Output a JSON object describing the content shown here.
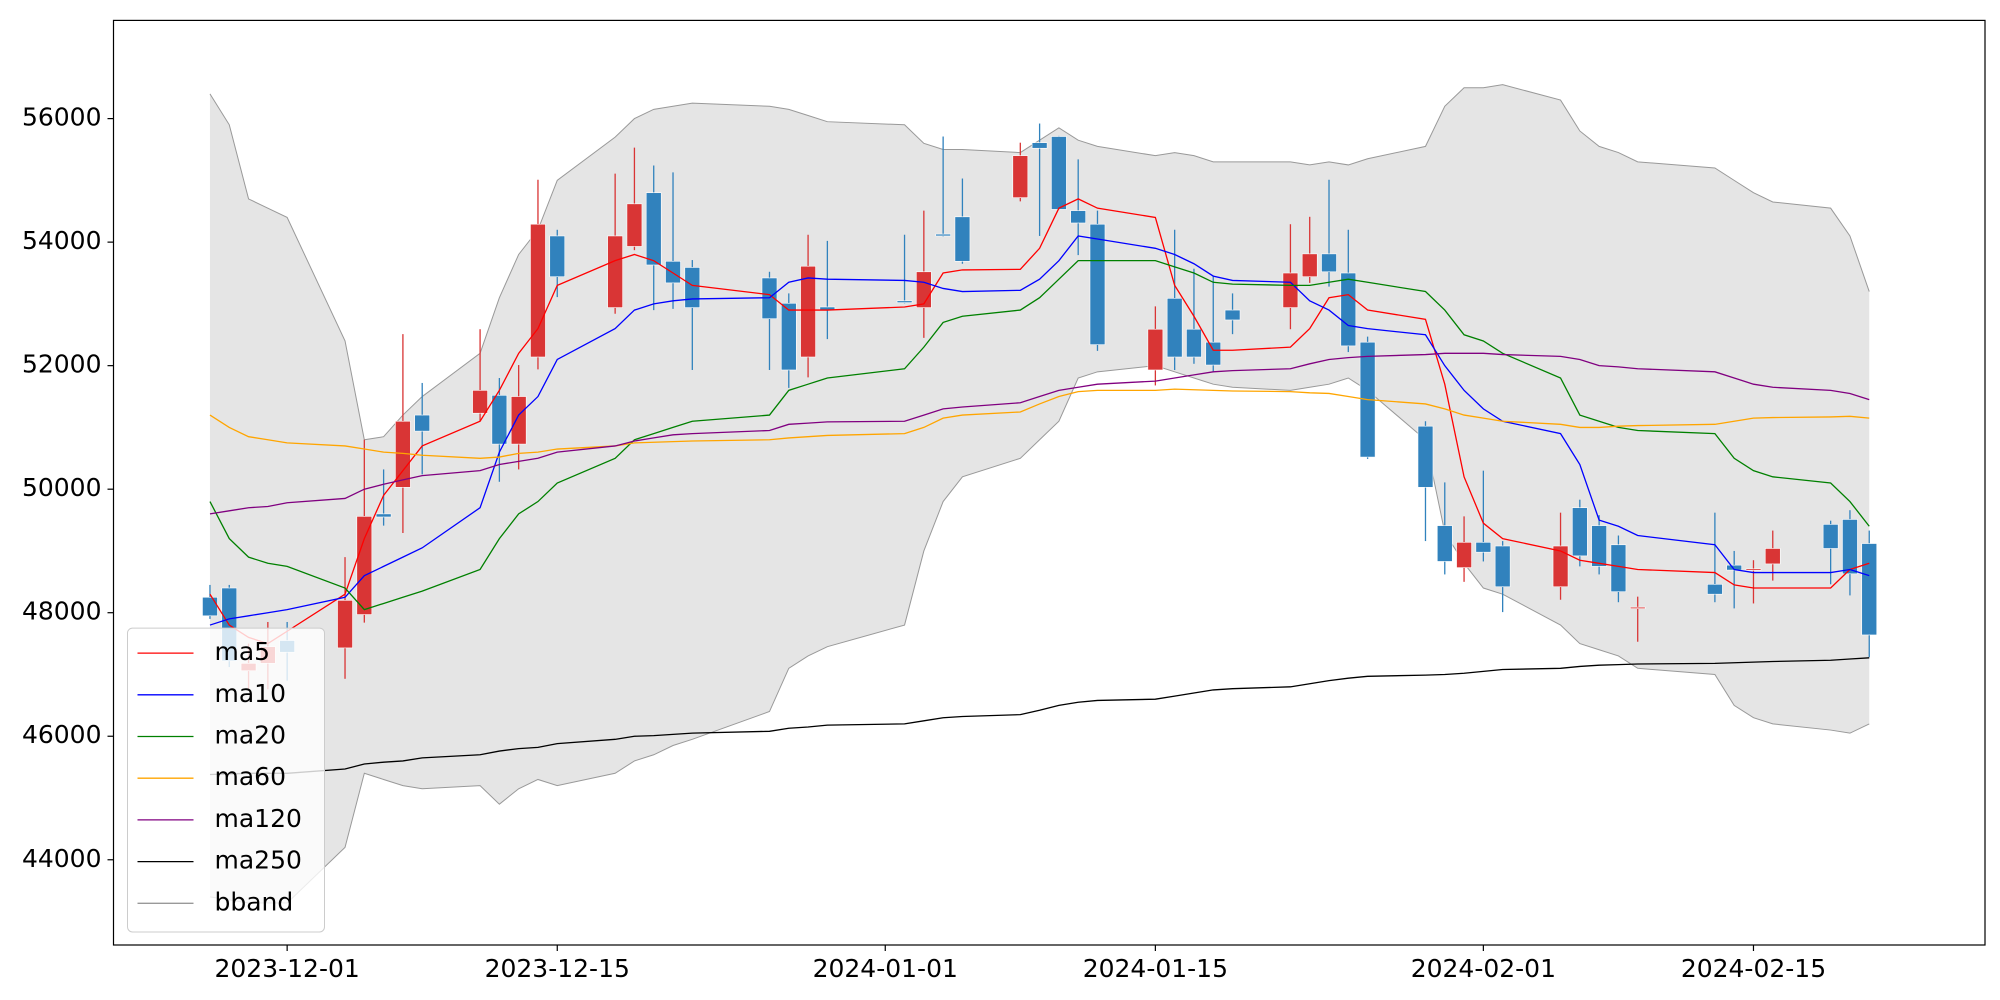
{
  "chart_data": {
    "type": "candlestick",
    "x": [
      "2023-11-27",
      "2023-11-28",
      "2023-11-29",
      "2023-11-30",
      "2023-12-01",
      "2023-12-04",
      "2023-12-05",
      "2023-12-06",
      "2023-12-07",
      "2023-12-08",
      "2023-12-11",
      "2023-12-12",
      "2023-12-13",
      "2023-12-14",
      "2023-12-15",
      "2023-12-18",
      "2023-12-19",
      "2023-12-20",
      "2023-12-21",
      "2023-12-22",
      "2023-12-26",
      "2023-12-27",
      "2023-12-28",
      "2023-12-29",
      "2024-01-02",
      "2024-01-03",
      "2024-01-04",
      "2024-01-05",
      "2024-01-08",
      "2024-01-09",
      "2024-01-10",
      "2024-01-11",
      "2024-01-12",
      "2024-01-15",
      "2024-01-16",
      "2024-01-17",
      "2024-01-18",
      "2024-01-19",
      "2024-01-22",
      "2024-01-23",
      "2024-01-24",
      "2024-01-25",
      "2024-01-26",
      "2024-01-29",
      "2024-01-30",
      "2024-01-31",
      "2024-02-01",
      "2024-02-02",
      "2024-02-05",
      "2024-02-06",
      "2024-02-07",
      "2024-02-08",
      "2024-02-09",
      "2024-02-13",
      "2024-02-14",
      "2024-02-15",
      "2024-02-16",
      "2024-02-19",
      "2024-02-20",
      "2024-02-21"
    ],
    "open": [
      48250,
      48400,
      47060,
      47180,
      47550,
      47430,
      47970,
      49600,
      50030,
      51200,
      51230,
      51520,
      50730,
      52140,
      54100,
      52940,
      53930,
      54800,
      53690,
      53590,
      53420,
      53010,
      52140,
      52950,
      53050,
      52940,
      54130,
      54410,
      54720,
      55610,
      55710,
      54510,
      54290,
      51930,
      53090,
      52590,
      52380,
      52900,
      52940,
      53440,
      53810,
      53500,
      52380,
      51020,
      49410,
      48730,
      49140,
      49080,
      48420,
      49700,
      49410,
      49100,
      48070,
      48460,
      48770,
      48690,
      48790,
      49430,
      49510,
      49120
    ],
    "high": [
      48450,
      48450,
      47500,
      47850,
      47850,
      48900,
      50800,
      50320,
      52510,
      51720,
      52590,
      51800,
      52010,
      55010,
      54200,
      55110,
      55530,
      55240,
      55130,
      53710,
      53520,
      53170,
      54120,
      54020,
      54120,
      54510,
      55710,
      55030,
      55610,
      55920,
      55720,
      55340,
      54510,
      52960,
      54200,
      53570,
      53460,
      53170,
      54290,
      54410,
      55010,
      54200,
      52470,
      51100,
      50110,
      49560,
      50300,
      49160,
      49620,
      49830,
      49580,
      49250,
      48260,
      49620,
      49000,
      48850,
      49330,
      49490,
      49660,
      49330
    ],
    "low": [
      47900,
      47120,
      46760,
      46760,
      46900,
      46930,
      47840,
      49410,
      49290,
      50240,
      51100,
      50120,
      50320,
      51940,
      53110,
      52840,
      53870,
      52900,
      52920,
      51930,
      51930,
      51640,
      51810,
      52430,
      53010,
      52450,
      54090,
      53650,
      54660,
      54100,
      54520,
      53790,
      52240,
      51680,
      51930,
      52030,
      51890,
      52510,
      52590,
      53340,
      53280,
      52220,
      50490,
      49160,
      48620,
      48500,
      48830,
      48010,
      48210,
      48750,
      48620,
      48170,
      47530,
      48170,
      48070,
      48150,
      48520,
      48460,
      48280,
      47280
    ],
    "close": [
      47950,
      47220,
      47180,
      47450,
      47360,
      48200,
      49560,
      49550,
      51100,
      50940,
      51600,
      50730,
      51500,
      54290,
      53440,
      54100,
      54620,
      53630,
      53340,
      52940,
      52760,
      51930,
      53610,
      52900,
      53020,
      53520,
      54100,
      53690,
      55400,
      55520,
      54530,
      54310,
      52340,
      52590,
      52140,
      52140,
      52010,
      52740,
      53500,
      53810,
      53520,
      52320,
      50520,
      50030,
      48830,
      49140,
      48980,
      48420,
      49080,
      48920,
      48750,
      48340,
      48090,
      48300,
      48690,
      48710,
      49040,
      49040,
      48630,
      47640
    ],
    "up_color": "#d93535",
    "down_color": "#3182bd",
    "lines": [
      {
        "name": "ma5",
        "color": "#ff0000",
        "values": [
          48300,
          47800,
          47600,
          47500,
          47700,
          48300,
          49200,
          49900,
          50300,
          50700,
          51100,
          51600,
          52200,
          52600,
          53300,
          53700,
          53800,
          53700,
          53500,
          53300,
          53150,
          52900,
          52900,
          52900,
          52950,
          53000,
          53500,
          53550,
          53560,
          53900,
          54550,
          54700,
          54550,
          54400,
          53300,
          52800,
          52250,
          52250,
          52300,
          52600,
          53100,
          53150,
          52900,
          52750,
          51700,
          50200,
          49450,
          49200,
          49000,
          48850,
          48800,
          48750,
          48700,
          48650,
          48450,
          48400,
          48400,
          48400,
          48700,
          48800
        ]
      },
      {
        "name": "ma10",
        "color": "#0000ff",
        "values": [
          47800,
          47900,
          47950,
          48000,
          48050,
          48250,
          48600,
          48750,
          48900,
          49050,
          49700,
          50600,
          51200,
          51500,
          52100,
          52600,
          52900,
          53000,
          53050,
          53080,
          53100,
          53350,
          53420,
          53400,
          53380,
          53350,
          53250,
          53200,
          53220,
          53400,
          53700,
          54100,
          54050,
          53900,
          53800,
          53650,
          53450,
          53380,
          53350,
          53050,
          52900,
          52650,
          52600,
          52500,
          52000,
          51600,
          51300,
          51100,
          50900,
          50400,
          49500,
          49400,
          49250,
          49100,
          48700,
          48650,
          48650,
          48650,
          48700,
          48600
        ]
      },
      {
        "name": "ma20",
        "color": "#008000",
        "values": [
          49800,
          49200,
          48900,
          48800,
          48750,
          48400,
          48050,
          48150,
          48250,
          48350,
          48700,
          49200,
          49600,
          49800,
          50100,
          50500,
          50800,
          50900,
          51000,
          51100,
          51200,
          51600,
          51700,
          51800,
          51950,
          52300,
          52700,
          52800,
          52900,
          53100,
          53400,
          53700,
          53700,
          53700,
          53600,
          53500,
          53350,
          53320,
          53300,
          53300,
          53350,
          53400,
          53350,
          53200,
          52900,
          52500,
          52400,
          52200,
          51800,
          51200,
          51100,
          51000,
          50950,
          50900,
          50500,
          50300,
          50200,
          50100,
          49800,
          49400
        ]
      },
      {
        "name": "ma60",
        "color": "#ffa500",
        "values": [
          51200,
          51000,
          50850,
          50800,
          50750,
          50700,
          50650,
          50600,
          50580,
          50550,
          50500,
          50520,
          50580,
          50600,
          50650,
          50700,
          50750,
          50760,
          50770,
          50780,
          50800,
          50830,
          50850,
          50870,
          50900,
          51000,
          51150,
          51200,
          51250,
          51380,
          51500,
          51580,
          51600,
          51600,
          51620,
          51610,
          51600,
          51590,
          51580,
          51560,
          51550,
          51500,
          51450,
          51380,
          51300,
          51200,
          51150,
          51100,
          51050,
          51000,
          51000,
          51020,
          51030,
          51050,
          51100,
          51150,
          51160,
          51170,
          51180,
          51150
        ]
      },
      {
        "name": "ma120",
        "color": "#800080",
        "values": [
          49600,
          49650,
          49700,
          49720,
          49780,
          49850,
          50000,
          50080,
          50150,
          50220,
          50300,
          50400,
          50450,
          50500,
          50600,
          50700,
          50780,
          50830,
          50880,
          50900,
          50950,
          51050,
          51070,
          51090,
          51100,
          51200,
          51300,
          51330,
          51400,
          51500,
          51600,
          51650,
          51700,
          51750,
          51800,
          51850,
          51900,
          51920,
          51950,
          52030,
          52100,
          52130,
          52150,
          52180,
          52200,
          52200,
          52200,
          52180,
          52150,
          52100,
          52000,
          51980,
          51950,
          51900,
          51800,
          51700,
          51650,
          51600,
          51550,
          51450
        ]
      },
      {
        "name": "ma250",
        "color": "#000000",
        "values": [
          45380,
          45390,
          45400,
          45400,
          45400,
          45470,
          45550,
          45580,
          45600,
          45650,
          45700,
          45760,
          45800,
          45820,
          45880,
          45950,
          46000,
          46010,
          46030,
          46050,
          46080,
          46130,
          46150,
          46180,
          46200,
          46250,
          46300,
          46320,
          46350,
          46420,
          46500,
          46550,
          46580,
          46600,
          46650,
          46700,
          46750,
          46770,
          46800,
          46850,
          46900,
          46940,
          46970,
          46990,
          47000,
          47020,
          47050,
          47080,
          47100,
          47130,
          47150,
          47160,
          47170,
          47180,
          47190,
          47200,
          47210,
          47230,
          47250,
          47270
        ]
      }
    ],
    "bband": {
      "name": "bband",
      "color": "#999999",
      "fill": "#e5e5e5",
      "upper": [
        56400,
        55900,
        54700,
        54550,
        54400,
        52400,
        50800,
        50850,
        51200,
        51500,
        52200,
        53100,
        53800,
        54200,
        55000,
        55700,
        56000,
        56150,
        56200,
        56250,
        56200,
        56150,
        56050,
        55950,
        55900,
        55600,
        55500,
        55500,
        55450,
        55650,
        55850,
        55650,
        55550,
        55400,
        55450,
        55400,
        55300,
        55300,
        55300,
        55250,
        55300,
        55250,
        55350,
        55550,
        56200,
        56500,
        56500,
        56550,
        56300,
        55800,
        55550,
        55450,
        55300,
        55200,
        55000,
        54800,
        54650,
        54550,
        54100,
        53200
      ],
      "lower": [
        43400,
        43350,
        43300,
        43300,
        43300,
        44200,
        45400,
        45300,
        45200,
        45150,
        45200,
        44900,
        45150,
        45300,
        45200,
        45400,
        45600,
        45700,
        45850,
        45950,
        46400,
        47100,
        47300,
        47450,
        47800,
        49000,
        49800,
        50200,
        50500,
        50800,
        51100,
        51800,
        51900,
        52000,
        51900,
        51800,
        51700,
        51650,
        51600,
        51650,
        51700,
        51800,
        51600,
        50800,
        49300,
        48800,
        48400,
        48300,
        47800,
        47500,
        47400,
        47300,
        47100,
        47000,
        46500,
        46300,
        46200,
        46100,
        46050,
        46200
      ]
    },
    "xlim": [
      "2023-11-22",
      "2024-02-27"
    ],
    "xticks": [
      "2023-12-01",
      "2023-12-15",
      "2024-01-01",
      "2024-01-15",
      "2024-02-01",
      "2024-02-15"
    ],
    "ylim": [
      42620,
      57590
    ],
    "yticks": [
      44000,
      46000,
      48000,
      50000,
      52000,
      54000,
      56000
    ],
    "legend": "lower left"
  }
}
